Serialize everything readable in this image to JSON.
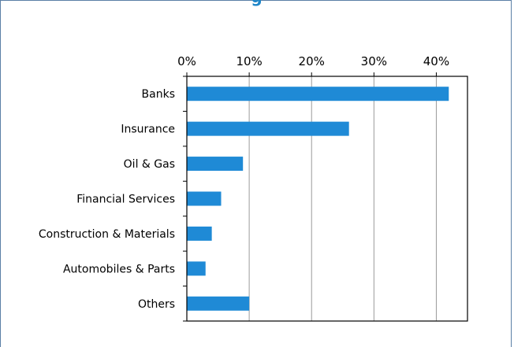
{
  "title": "g",
  "chart_data": {
    "type": "bar",
    "orientation": "horizontal",
    "title": "",
    "xlabel": "",
    "ylabel": "",
    "categories": [
      "Banks",
      "Insurance",
      "Oil & Gas",
      "Financial Services",
      "Construction & Materials",
      "Automobiles & Parts",
      "Others"
    ],
    "values": [
      42,
      26,
      9,
      5.5,
      4,
      3,
      10
    ],
    "xlim": [
      0,
      45
    ],
    "x_ticks": [
      "0%",
      "10%",
      "20%",
      "30%",
      "40%"
    ],
    "x_tick_values": [
      0,
      10,
      20,
      30,
      40
    ],
    "x_axis_position": "top",
    "grid": true,
    "bar_color": "#1f8ad6"
  }
}
